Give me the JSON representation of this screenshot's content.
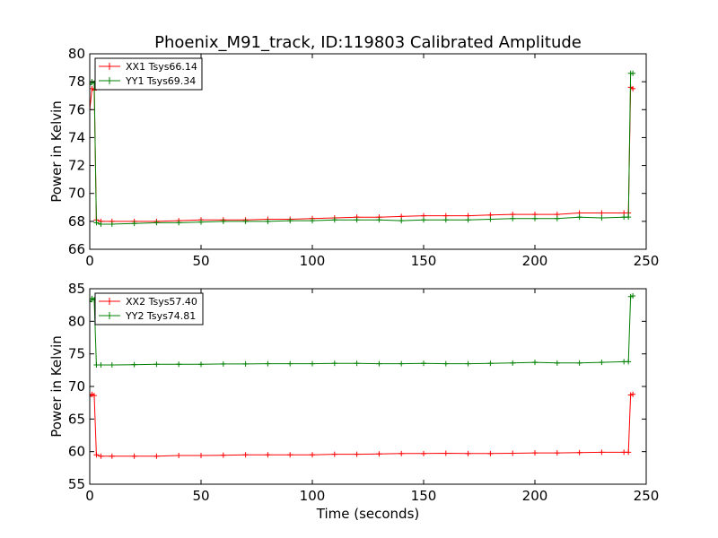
{
  "chart_data": [
    {
      "type": "line",
      "title": "Phoenix_M91_track, ID:119803 Calibrated Amplitude",
      "xlabel": "",
      "ylabel": "Power in Kelvin",
      "xlim": [
        0,
        250
      ],
      "ylim": [
        66,
        80
      ],
      "xticks": [
        "0",
        "50",
        "100",
        "150",
        "200",
        "250"
      ],
      "yticks": [
        "66",
        "68",
        "70",
        "72",
        "74",
        "76",
        "78",
        "80"
      ],
      "grid": false,
      "legend": "top-left",
      "series": [
        {
          "name": "XX1 Tsys66.14",
          "color": "#ff0000",
          "marker": "+",
          "x": [
            0,
            1,
            2,
            3,
            5,
            10,
            20,
            30,
            40,
            50,
            60,
            70,
            80,
            90,
            100,
            110,
            120,
            130,
            140,
            150,
            160,
            170,
            180,
            190,
            200,
            210,
            220,
            230,
            240,
            242,
            243,
            244
          ],
          "y": [
            76.0,
            77.5,
            77.4,
            68.1,
            68.0,
            68.0,
            68.0,
            68.0,
            68.05,
            68.1,
            68.1,
            68.1,
            68.15,
            68.15,
            68.2,
            68.25,
            68.3,
            68.3,
            68.35,
            68.4,
            68.4,
            68.4,
            68.45,
            68.5,
            68.5,
            68.5,
            68.6,
            68.6,
            68.6,
            68.6,
            77.6,
            77.5
          ]
        },
        {
          "name": "YY1 Tsys69.34",
          "color": "#008000",
          "marker": "+",
          "x": [
            0,
            1,
            2,
            3,
            5,
            10,
            20,
            30,
            40,
            50,
            60,
            70,
            80,
            90,
            100,
            110,
            120,
            130,
            140,
            150,
            160,
            170,
            180,
            190,
            200,
            210,
            220,
            230,
            240,
            242,
            243,
            244
          ],
          "y": [
            77.8,
            78.0,
            77.9,
            67.9,
            67.8,
            67.8,
            67.85,
            67.9,
            67.9,
            67.95,
            68.0,
            68.0,
            68.0,
            68.05,
            68.05,
            68.1,
            68.1,
            68.1,
            68.05,
            68.1,
            68.1,
            68.1,
            68.15,
            68.2,
            68.2,
            68.2,
            68.3,
            68.25,
            68.3,
            68.3,
            78.6,
            78.6
          ]
        }
      ]
    },
    {
      "type": "line",
      "title": "",
      "xlabel": "Time (seconds)",
      "ylabel": "Power in Kelvin",
      "xlim": [
        0,
        250
      ],
      "ylim": [
        55,
        85
      ],
      "xticks": [
        "0",
        "50",
        "100",
        "150",
        "200",
        "250"
      ],
      "yticks": [
        "55",
        "60",
        "65",
        "70",
        "75",
        "80",
        "85"
      ],
      "grid": false,
      "legend": "top-left",
      "series": [
        {
          "name": "XX2 Tsys57.40",
          "color": "#ff0000",
          "marker": "+",
          "x": [
            0,
            1,
            2,
            3,
            5,
            10,
            20,
            30,
            40,
            50,
            60,
            70,
            80,
            90,
            100,
            110,
            120,
            130,
            140,
            150,
            160,
            170,
            180,
            190,
            200,
            210,
            220,
            230,
            240,
            242,
            243,
            244
          ],
          "y": [
            68.5,
            68.8,
            68.6,
            59.5,
            59.3,
            59.3,
            59.3,
            59.3,
            59.4,
            59.4,
            59.45,
            59.5,
            59.5,
            59.5,
            59.5,
            59.6,
            59.6,
            59.65,
            59.7,
            59.7,
            59.75,
            59.7,
            59.7,
            59.75,
            59.8,
            59.8,
            59.85,
            59.9,
            59.9,
            59.9,
            68.7,
            68.8
          ]
        },
        {
          "name": "YY2 Tsys74.81",
          "color": "#008000",
          "marker": "+",
          "x": [
            0,
            1,
            2,
            3,
            5,
            10,
            20,
            30,
            40,
            50,
            60,
            70,
            80,
            90,
            100,
            110,
            120,
            130,
            140,
            150,
            160,
            170,
            180,
            190,
            200,
            210,
            220,
            230,
            240,
            242,
            243,
            244
          ],
          "y": [
            83.0,
            83.5,
            83.3,
            73.3,
            73.3,
            73.3,
            73.35,
            73.4,
            73.4,
            73.4,
            73.45,
            73.45,
            73.5,
            73.5,
            73.5,
            73.55,
            73.55,
            73.5,
            73.5,
            73.55,
            73.5,
            73.5,
            73.55,
            73.6,
            73.7,
            73.6,
            73.6,
            73.7,
            73.8,
            73.8,
            83.8,
            83.9
          ]
        }
      ]
    }
  ]
}
